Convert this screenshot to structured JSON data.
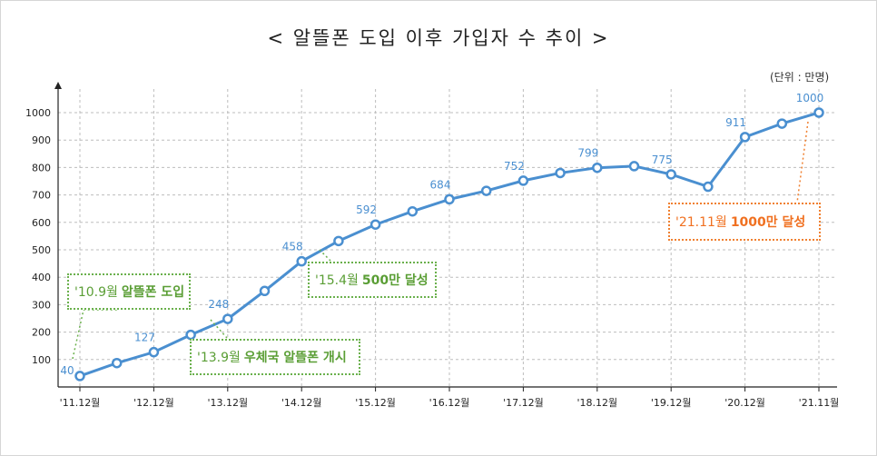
{
  "chart_data": {
    "type": "line",
    "title": "< 알뜰폰 도입 이후 가입자 수 추이 >",
    "unit_note": "(단위 : 만명)",
    "ylim": [
      0,
      1050
    ],
    "yticks": [
      100,
      200,
      300,
      400,
      500,
      600,
      700,
      800,
      900,
      1000
    ],
    "xticks": [
      "'11.12월",
      "'12.12월",
      "'13.12월",
      "'14.12월",
      "'15.12월",
      "'16.12월",
      "'17.12월",
      "'18.12월",
      "'19.12월",
      "'20.12월",
      "'21.11월"
    ],
    "grid": true,
    "line_color": "#4a8fd0",
    "series": [
      {
        "values": [
          40,
          87,
          127,
          190,
          248,
          350,
          458,
          532,
          592,
          640,
          684,
          715,
          752,
          780,
          799,
          805,
          775,
          730,
          911,
          960,
          1000
        ],
        "labels": [
          "40",
          null,
          "127",
          null,
          "248",
          null,
          "458",
          null,
          "592",
          null,
          "684",
          null,
          "752",
          null,
          "799",
          null,
          "775",
          null,
          "911",
          null,
          "1000"
        ]
      }
    ],
    "annotations": [
      {
        "prefix": "'10.9월",
        "text": "알뜰폰 도입",
        "color": "#5a9e35"
      },
      {
        "prefix": "'13.9월",
        "text": "우체국 알뜰폰 개시",
        "color": "#5a9e35"
      },
      {
        "prefix": "'15.4월",
        "text": "500만 달성",
        "color": "#5a9e35"
      },
      {
        "prefix": "'21.11월",
        "text": "1000만 달성",
        "color": "#f07020"
      }
    ]
  }
}
